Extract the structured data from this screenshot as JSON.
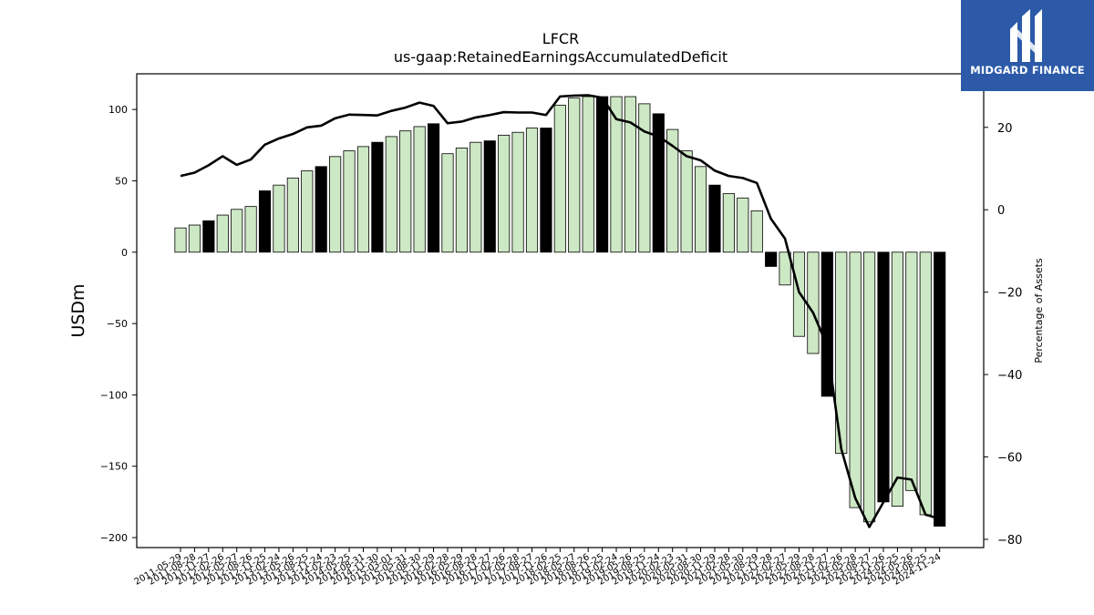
{
  "chart_data": {
    "type": "bar",
    "title": "LFCR",
    "subtitle": "us-gaap:RetainedEarningsAccumulatedDeficit",
    "ylabel": "USDm",
    "y2label": "Percentage of Assets",
    "ylim": [
      -207,
      125
    ],
    "y2lim": [
      -82,
      33
    ],
    "yticks": [
      100,
      50,
      0,
      -50,
      -100,
      -150,
      -200
    ],
    "y2ticks": [
      20,
      0,
      -20,
      -40,
      -60,
      -80
    ],
    "highlight_color": "#000000",
    "bar_color": "#cde8c4",
    "line_color": "#000000",
    "categories": [
      "2011-05-29",
      "2011-08-28",
      "2011-11-27",
      "2012-02-26",
      "2012-05-27",
      "2012-08-26",
      "2012-11-25",
      "2013-02-24",
      "2013-05-26",
      "2013-08-25",
      "2013-11-24",
      "2014-02-23",
      "2014-05-25",
      "2014-08-31",
      "2014-11-30",
      "2015-03-01",
      "2015-05-31",
      "2015-08-30",
      "2015-11-29",
      "2016-02-28",
      "2016-05-29",
      "2016-08-28",
      "2016-11-27",
      "2017-02-26",
      "2017-05-28",
      "2017-08-27",
      "2017-11-26",
      "2018-02-25",
      "2018-05-27",
      "2018-08-26",
      "2018-11-25",
      "2019-02-24",
      "2019-05-26",
      "2019-08-25",
      "2019-11-24",
      "2020-02-23",
      "2020-05-31",
      "2020-08-30",
      "2020-11-29",
      "2021-02-28",
      "2021-05-30",
      "2021-08-29",
      "2021-11-28",
      "2022-02-27",
      "2022-05-29",
      "2022-08-28",
      "2022-11-27",
      "2023-02-26",
      "2023-05-28",
      "2023-08-27",
      "2023-11-26",
      "2024-02-25",
      "2024-05-26",
      "2024-08-25",
      "2024-11-24"
    ],
    "tick_labels": [
      "2011-05-29",
      "2011-08-28",
      "2011-11-27",
      "2012-02-26",
      "2012-05-27",
      "2012-08-26",
      "2012-11-25",
      "2013-02-24",
      "2013-05-26",
      "2013-08-25",
      "2013-11-24",
      "2014-02-23",
      "2014-05-25",
      "2014-08-31",
      "2014-11-30",
      "2015-03-01",
      "2015-05-31",
      "2015-08-30",
      "2015-11-29",
      "2016-02-28",
      "2016-05-29",
      "2016-08-28",
      "2016-11-27",
      "2017-02-26",
      "2017-05-28",
      "2017-08-27",
      "2017-11-26",
      "2018-02-25",
      "2018-05-27",
      "2018-08-26",
      "2018-11-25",
      "2019-02-24",
      "2019-05-26",
      "2019-08-25",
      "2019-11-24",
      "2020-02-23",
      "2020-05-31",
      "2020-08-30",
      "2020-11-29",
      "2021-02-28",
      "2021-05-30",
      "2021-08-29",
      "2021-11-28",
      "2022-02-27",
      "2022-05-29",
      "2022-08-28",
      "2022-11-27",
      "2023-02-26",
      "2023-05-28",
      "2023-08-27",
      "2023-11-26",
      "2024-02-25",
      "2024-05-26",
      "2024-08-25",
      "2024-11-24"
    ],
    "series": [
      {
        "axis": "left",
        "values": [
          17,
          19,
          22,
          26,
          30,
          32,
          43,
          47,
          52,
          57,
          60,
          67,
          71,
          74,
          77,
          81,
          85,
          88,
          90,
          69,
          73,
          77,
          78,
          82,
          84,
          87,
          87,
          103,
          108,
          109,
          109,
          109,
          109,
          104,
          97,
          86,
          71,
          60,
          47,
          41,
          38,
          29,
          -10,
          -23,
          -59,
          -71,
          -101,
          -141,
          -179,
          -189,
          -175,
          -178,
          -167,
          -184,
          -192
        ],
        "highlighted": [
          false,
          false,
          true,
          false,
          false,
          false,
          true,
          false,
          false,
          false,
          true,
          false,
          false,
          false,
          true,
          false,
          false,
          false,
          true,
          false,
          false,
          false,
          true,
          false,
          false,
          false,
          true,
          false,
          false,
          false,
          true,
          false,
          false,
          false,
          true,
          false,
          false,
          false,
          true,
          false,
          false,
          false,
          true,
          false,
          false,
          false,
          true,
          false,
          false,
          false,
          true,
          false,
          false,
          false,
          true
        ]
      },
      {
        "axis": "right",
        "type": "line",
        "values": [
          8.2,
          9.0,
          10.8,
          13.0,
          10.9,
          12.2,
          15.8,
          17.3,
          18.4,
          20.0,
          20.4,
          22.2,
          23.1,
          23.0,
          22.9,
          24.0,
          24.8,
          26.0,
          25.2,
          21.0,
          21.4,
          22.4,
          23.0,
          23.7,
          23.6,
          23.6,
          23.0,
          27.5,
          27.7,
          27.8,
          27.2,
          22.0,
          21.2,
          19.0,
          17.8,
          15.5,
          13.0,
          12.0,
          9.5,
          8.2,
          7.7,
          6.5,
          -2.2,
          -7.0,
          -20.0,
          -25.0,
          -33.0,
          -58.0,
          -70.0,
          -77.0,
          -71.0,
          -65.0,
          -65.5,
          -74.0,
          -75.0
        ]
      }
    ]
  },
  "logo": {
    "text": "MIDGARD FINANCE",
    "icon": "midgard-m-icon",
    "color": "#2c5aa8"
  }
}
